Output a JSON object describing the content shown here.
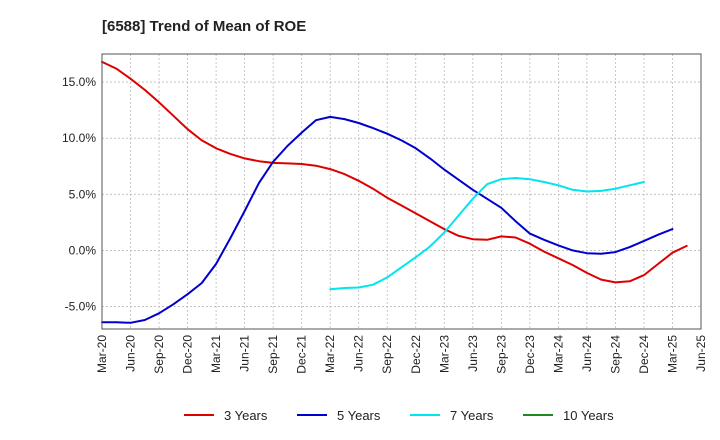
{
  "chart_data": {
    "type": "line",
    "title": "[6588]  Trend of Mean of ROE",
    "xlabel": "",
    "ylabel": "",
    "x_tick_labels": [
      "Mar-20",
      "Jun-20",
      "Sep-20",
      "Dec-20",
      "Mar-21",
      "Jun-21",
      "Sep-21",
      "Dec-21",
      "Mar-22",
      "Jun-22",
      "Sep-22",
      "Dec-22",
      "Mar-23",
      "Jun-23",
      "Sep-23",
      "Dec-23",
      "Mar-24",
      "Jun-24",
      "Sep-24",
      "Dec-24",
      "Mar-25",
      "Jun-25"
    ],
    "y_ticks": [
      {
        "value": 15,
        "label": "15.0%"
      },
      {
        "value": 10,
        "label": "10.0%"
      },
      {
        "value": 5,
        "label": "5.0%"
      },
      {
        "value": 0,
        "label": "0.0%"
      },
      {
        "value": -5,
        "label": "-5.0%"
      }
    ],
    "ylim": [
      -7,
      17.5
    ],
    "grid": true,
    "legend_position": "bottom",
    "series": [
      {
        "name": "3 Years",
        "color": "#dd0000",
        "start_index": 0,
        "values": [
          16.8,
          16.2,
          15.3,
          14.3,
          13.2,
          12.0,
          10.8,
          9.8,
          9.1,
          8.6,
          8.2,
          7.95,
          7.8,
          7.75,
          7.7,
          7.55,
          7.25,
          6.8,
          6.2,
          5.5,
          4.7,
          4.0,
          3.3,
          2.6,
          1.9,
          1.3,
          1.0,
          0.95,
          1.25,
          1.15,
          0.6,
          -0.1,
          -0.7,
          -1.3,
          -2.0,
          -2.6,
          -2.85,
          -2.75,
          -2.2,
          -1.2,
          -0.2,
          0.4
        ]
      },
      {
        "name": "5 Years",
        "color": "#0000cc",
        "start_index": 0,
        "values": [
          -6.4,
          -6.4,
          -6.45,
          -6.2,
          -5.6,
          -4.8,
          -3.9,
          -2.9,
          -1.2,
          1.1,
          3.5,
          6.0,
          7.9,
          9.3,
          10.5,
          11.6,
          11.9,
          11.7,
          11.35,
          10.9,
          10.4,
          9.8,
          9.1,
          8.2,
          7.2,
          6.3,
          5.4,
          4.6,
          3.8,
          2.6,
          1.5,
          0.95,
          0.45,
          0.0,
          -0.25,
          -0.3,
          -0.15,
          0.3,
          0.85,
          1.4,
          1.9
        ]
      },
      {
        "name": "7 Years",
        "color": "#00e5ee",
        "start_index": 16,
        "values": [
          -3.45,
          -3.35,
          -3.3,
          -3.05,
          -2.4,
          -1.5,
          -0.6,
          0.35,
          1.6,
          3.1,
          4.6,
          5.9,
          6.35,
          6.45,
          6.35,
          6.1,
          5.8,
          5.4,
          5.25,
          5.3,
          5.5,
          5.8,
          6.1
        ]
      },
      {
        "name": "10 Years",
        "color": "#228822",
        "start_index": 0,
        "values": []
      }
    ]
  }
}
